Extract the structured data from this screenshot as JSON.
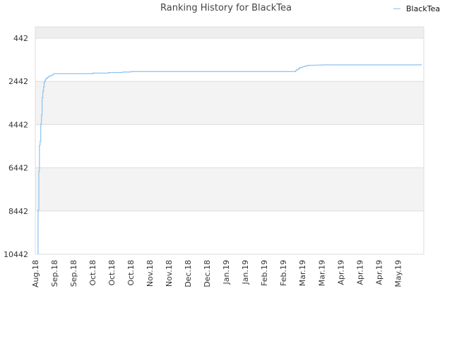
{
  "chart_data": {
    "type": "line",
    "title": "Ranking History for BlackTea",
    "xlabel": "",
    "ylabel": "",
    "legend": {
      "position": "top-right",
      "entries": [
        "BlackTea"
      ]
    },
    "y_axis": {
      "reversed": true,
      "range": [
        442,
        10442
      ],
      "ticks": [
        442,
        2442,
        4442,
        6442,
        8442,
        10442
      ],
      "tick_labels": [
        "442",
        "2442",
        "4442",
        "6442",
        "8442",
        "10442"
      ],
      "alternating_bands": true
    },
    "x_axis": {
      "range_days": [
        0,
        285
      ],
      "tick_days": [
        0,
        14,
        28,
        42,
        56,
        70,
        84,
        98,
        112,
        126,
        140,
        154,
        168,
        182,
        196,
        210,
        224,
        238,
        252,
        266
      ],
      "tick_labels": [
        "Aug.18",
        "Sep.18",
        "Sep.18",
        "Oct.18",
        "Oct.18",
        "Oct.18",
        "Nov.18",
        "Nov.18",
        "Dec.18",
        "Dec.18",
        "Jan.19",
        "Jan.19",
        "Feb.19",
        "Feb.19",
        "Mar.19",
        "Mar.19",
        "Apr.19",
        "Apr.19",
        "Apr.19",
        "May.19"
      ]
    },
    "series": [
      {
        "name": "BlackTea",
        "color": "#8cc2f2",
        "x": [
          2,
          2,
          2.6,
          3,
          3.5,
          4,
          4.5,
          5,
          5.5,
          6,
          6.5,
          7,
          7.5,
          8,
          9,
          10,
          11,
          12,
          13,
          14,
          20,
          40,
          42,
          50,
          54,
          64,
          70,
          80,
          100,
          130,
          160,
          180,
          190,
          191,
          192,
          193,
          194,
          196,
          198,
          200,
          205,
          210,
          230,
          250,
          270,
          280,
          283
        ],
        "y": [
          10442,
          8400,
          6600,
          5400,
          5200,
          4400,
          4000,
          3200,
          2900,
          2700,
          2500,
          2400,
          2350,
          2300,
          2250,
          2200,
          2180,
          2150,
          2100,
          2090,
          2090,
          2090,
          2060,
          2060,
          2030,
          2010,
          1990,
          1990,
          1990,
          1990,
          1990,
          1990,
          1990,
          1940,
          1900,
          1850,
          1800,
          1760,
          1730,
          1700,
          1690,
          1680,
          1680,
          1680,
          1680,
          1680,
          1630
        ]
      }
    ]
  }
}
